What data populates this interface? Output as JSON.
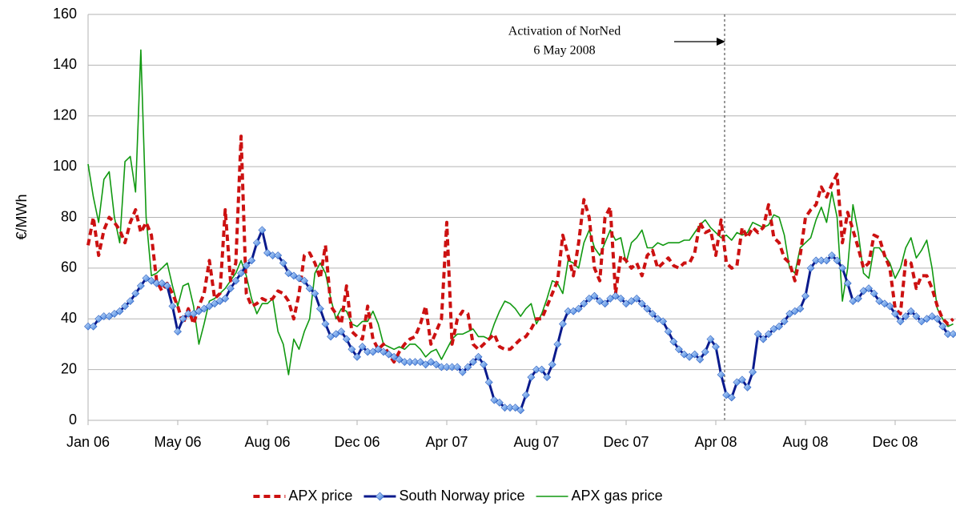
{
  "chart_data": {
    "type": "line",
    "y_label": "€/MWh",
    "annotation": [
      "Activation of NorNed",
      "6 May 2008"
    ],
    "categories": [
      "Jan 06",
      null,
      null,
      null,
      null,
      null,
      null,
      null,
      null,
      null,
      null,
      null,
      null,
      null,
      null,
      null,
      null,
      "May 06",
      null,
      null,
      null,
      null,
      null,
      null,
      null,
      null,
      null,
      null,
      null,
      null,
      null,
      null,
      null,
      null,
      "Aug 06",
      null,
      null,
      null,
      null,
      null,
      null,
      null,
      null,
      null,
      null,
      null,
      null,
      null,
      null,
      null,
      null,
      "Dec 06",
      null,
      null,
      null,
      null,
      null,
      null,
      null,
      null,
      null,
      null,
      null,
      null,
      null,
      null,
      null,
      null,
      "Apr 07",
      null,
      null,
      null,
      null,
      null,
      null,
      null,
      null,
      null,
      null,
      null,
      null,
      null,
      null,
      null,
      null,
      "Aug 07",
      null,
      null,
      null,
      null,
      null,
      null,
      null,
      null,
      null,
      null,
      null,
      null,
      null,
      null,
      null,
      null,
      "Dec 07",
      null,
      null,
      null,
      null,
      null,
      null,
      null,
      null,
      null,
      null,
      null,
      null,
      null,
      null,
      null,
      null,
      "Apr 08",
      null,
      null,
      null,
      null,
      null,
      null,
      null,
      null,
      null,
      null,
      null,
      null,
      null,
      null,
      null,
      null,
      "Aug 08",
      null,
      null,
      null,
      null,
      null,
      null,
      null,
      null,
      null,
      null,
      null,
      null,
      null,
      null,
      null,
      null,
      "Dec 08",
      null,
      null,
      null,
      null,
      null,
      null,
      null,
      null,
      null,
      null,
      null
    ],
    "ylim": [
      0,
      160
    ],
    "yticks": [
      0,
      20,
      40,
      60,
      80,
      100,
      120,
      140,
      160
    ],
    "grid": true,
    "legend": "bottom",
    "series": [
      {
        "name": "APX price",
        "color": "#cc1111",
        "style": "dashed",
        "values": [
          69,
          80,
          65,
          75,
          80,
          78,
          75,
          70,
          78,
          83,
          74,
          78,
          73,
          55,
          51,
          54,
          50,
          45,
          38,
          44,
          38,
          45,
          50,
          63,
          48,
          50,
          83,
          55,
          62,
          112,
          50,
          45,
          46,
          48,
          47,
          48,
          51,
          50,
          47,
          40,
          50,
          65,
          66,
          62,
          56,
          69,
          45,
          42,
          38,
          53,
          35,
          33,
          32,
          45,
          32,
          28,
          30,
          26,
          23,
          27,
          30,
          32,
          33,
          38,
          45,
          30,
          35,
          40,
          78,
          30,
          40,
          43,
          42,
          30,
          28,
          30,
          32,
          34,
          29,
          28,
          28,
          30,
          32,
          33,
          36,
          40,
          40,
          45,
          50,
          55,
          73,
          65,
          57,
          70,
          87,
          80,
          60,
          55,
          80,
          84,
          50,
          65,
          63,
          60,
          62,
          57,
          65,
          67,
          60,
          62,
          64,
          61,
          60,
          62,
          62,
          66,
          78,
          74,
          75,
          65,
          79,
          62,
          60,
          61,
          76,
          72,
          76,
          74,
          76,
          85,
          72,
          70,
          64,
          62,
          55,
          65,
          80,
          83,
          85,
          92,
          88,
          93,
          97,
          70,
          82,
          75,
          68,
          60,
          62,
          73,
          72,
          65,
          60,
          44,
          42,
          63,
          62,
          52,
          57,
          57,
          52,
          45,
          40,
          38,
          40
        ]
      },
      {
        "name": "South Norway price",
        "color": "#0a1a8c",
        "style": "solid",
        "marker": "diamond",
        "values": [
          37,
          37,
          40,
          41,
          41,
          42,
          43,
          45,
          47,
          50,
          53,
          56,
          55,
          54,
          54,
          53,
          45,
          35,
          40,
          42,
          42,
          43,
          44,
          45,
          46,
          47,
          48,
          52,
          55,
          58,
          61,
          63,
          70,
          75,
          66,
          65,
          65,
          62,
          58,
          57,
          56,
          55,
          52,
          50,
          44,
          38,
          33,
          34,
          35,
          32,
          28,
          25,
          29,
          27,
          27,
          28,
          27,
          26,
          25,
          24,
          23,
          23,
          23,
          23,
          22,
          23,
          22,
          21,
          21,
          21,
          21,
          19,
          21,
          23,
          25,
          22,
          15,
          8,
          7,
          5,
          5,
          5,
          4,
          10,
          17,
          20,
          20,
          17,
          22,
          30,
          38,
          43,
          43,
          44,
          46,
          48,
          49,
          47,
          46,
          48,
          49,
          48,
          46,
          47,
          48,
          46,
          44,
          42,
          40,
          39,
          35,
          31,
          28,
          26,
          25,
          26,
          24,
          27,
          32,
          29,
          18,
          10,
          9,
          15,
          16,
          13,
          19,
          34,
          32,
          34,
          36,
          37,
          39,
          42,
          43,
          44,
          49,
          60,
          63,
          63,
          63,
          65,
          63,
          60,
          54,
          47,
          48,
          51,
          52,
          50,
          47,
          46,
          45,
          42,
          39,
          41,
          43,
          41,
          39,
          40,
          41,
          40,
          37,
          34,
          34
        ]
      },
      {
        "name": "APX gas price",
        "color": "#119911",
        "style": "solid",
        "values": [
          101,
          88,
          78,
          95,
          98,
          80,
          70,
          102,
          104,
          90,
          146,
          80,
          57,
          58,
          60,
          62,
          53,
          45,
          53,
          54,
          45,
          30,
          38,
          47,
          48,
          50,
          52,
          55,
          58,
          63,
          57,
          48,
          42,
          46,
          46,
          48,
          35,
          30,
          18,
          32,
          28,
          35,
          40,
          58,
          62,
          58,
          48,
          40,
          44,
          43,
          38,
          37,
          39,
          39,
          43,
          38,
          30,
          29,
          28,
          29,
          28,
          30,
          30,
          28,
          25,
          27,
          28,
          24,
          28,
          32,
          34,
          34,
          35,
          36,
          33,
          33,
          32,
          38,
          43,
          47,
          46,
          44,
          41,
          44,
          46,
          38,
          42,
          48,
          55,
          54,
          50,
          63,
          62,
          60,
          70,
          75,
          68,
          65,
          70,
          75,
          71,
          72,
          62,
          70,
          72,
          75,
          68,
          68,
          70,
          69,
          70,
          70,
          70,
          71,
          71,
          74,
          77,
          79,
          76,
          74,
          72,
          73,
          71,
          74,
          73,
          74,
          78,
          77,
          76,
          77,
          81,
          80,
          73,
          60,
          58,
          68,
          70,
          72,
          79,
          84,
          78,
          90,
          80,
          47,
          60,
          85,
          74,
          58,
          56,
          68,
          68,
          65,
          62,
          56,
          60,
          68,
          72,
          64,
          67,
          71,
          60,
          44,
          40,
          37,
          38
        ]
      }
    ]
  }
}
